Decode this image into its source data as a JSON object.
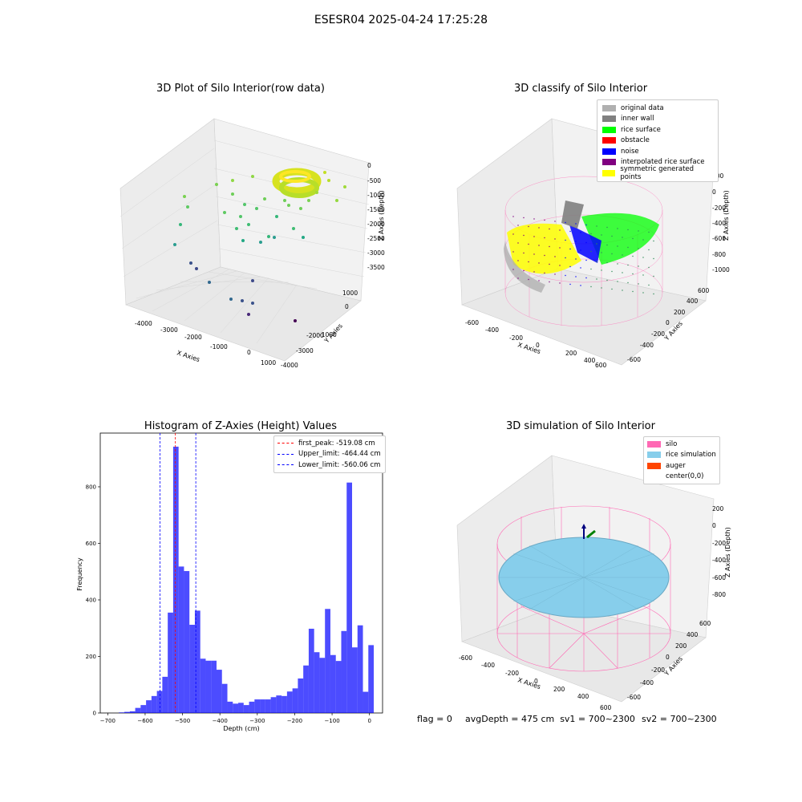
{
  "suptitle": "ESESR04 2025-04-24 17:25:28",
  "panels": {
    "raw": {
      "title": "3D Plot of Silo Interior(row data)",
      "xlabel": "X Axies",
      "ylabel": "Y Axies",
      "zlabel": "Z Axies (Depth)",
      "xticks": [
        "-4000",
        "-3000",
        "-2000",
        "-1000",
        "0",
        "1000"
      ],
      "yticks": [
        "1000",
        "0",
        "-1000",
        "-2000",
        "-3000",
        "-4000"
      ],
      "zticks": [
        "0",
        "-500",
        "-1000",
        "-1500",
        "-2000",
        "-2500",
        "-3000",
        "-3500"
      ]
    },
    "classify": {
      "title": "3D classify of Silo Interior",
      "xlabel": "X Axies",
      "ylabel": "Y Axies",
      "zlabel": "Z Axies (Depth)",
      "xticks": [
        "-600",
        "-400",
        "-200",
        "0",
        "200",
        "400",
        "600"
      ],
      "yticks": [
        "600",
        "400",
        "200",
        "0",
        "-200",
        "-400",
        "-600"
      ],
      "zticks": [
        "200",
        "0",
        "-200",
        "-400",
        "-600",
        "-800",
        "-1000"
      ],
      "legend": [
        {
          "label": "original data",
          "color": "#b0b0b0"
        },
        {
          "label": "inner wall",
          "color": "#808080"
        },
        {
          "label": "rice surface",
          "color": "#00ff00"
        },
        {
          "label": "obstacle",
          "color": "#ff0000"
        },
        {
          "label": "noise",
          "color": "#0000ff"
        },
        {
          "label": "interpolated rice surface",
          "color": "#800080"
        },
        {
          "label": "symmetric generated points",
          "color": "#ffff00"
        }
      ]
    },
    "simulation": {
      "title": "3D simulation of Silo Interior",
      "xlabel": "X Axies",
      "ylabel": "Y Axies",
      "zlabel": "Z Axies (Depth)",
      "xticks": [
        "-600",
        "-400",
        "-200",
        "0",
        "200",
        "400",
        "600"
      ],
      "yticks": [
        "600",
        "400",
        "200",
        "0",
        "-200",
        "-400",
        "-600"
      ],
      "zticks": [
        "200",
        "0",
        "-200",
        "-400",
        "-600",
        "-800"
      ],
      "legend": [
        {
          "label": "silo",
          "color": "#ff69b4"
        },
        {
          "label": "rice simulation",
          "color": "#87ceeb"
        },
        {
          "label": "auger",
          "color": "#ff4500"
        },
        {
          "label": "center(0,0)",
          "color": ""
        }
      ]
    }
  },
  "chart_data": {
    "type": "bar",
    "title": "Histogram of Z-Axies (Height) Values",
    "xlabel": "Depth (cm)",
    "ylabel": "Frequency",
    "xlim": [
      -720,
      35
    ],
    "ylim": [
      0,
      990
    ],
    "xticks": [
      -700,
      -600,
      -500,
      -400,
      -300,
      -200,
      -100,
      0
    ],
    "yticks": [
      0,
      200,
      400,
      600,
      800
    ],
    "bar_color": "#0000ff",
    "bin_width": 14.5,
    "bins": [
      {
        "x0": -670,
        "v": 2
      },
      {
        "x0": -655.5,
        "v": 4
      },
      {
        "x0": -641,
        "v": 6
      },
      {
        "x0": -626.5,
        "v": 18
      },
      {
        "x0": -612,
        "v": 28
      },
      {
        "x0": -597.5,
        "v": 45
      },
      {
        "x0": -583,
        "v": 60
      },
      {
        "x0": -568.5,
        "v": 78
      },
      {
        "x0": -554,
        "v": 128
      },
      {
        "x0": -539.5,
        "v": 355
      },
      {
        "x0": -525,
        "v": 942
      },
      {
        "x0": -510.5,
        "v": 518
      },
      {
        "x0": -496,
        "v": 502
      },
      {
        "x0": -481.5,
        "v": 312
      },
      {
        "x0": -467,
        "v": 362
      },
      {
        "x0": -452.5,
        "v": 192
      },
      {
        "x0": -438,
        "v": 185
      },
      {
        "x0": -423.5,
        "v": 185
      },
      {
        "x0": -409,
        "v": 153
      },
      {
        "x0": -394.5,
        "v": 103
      },
      {
        "x0": -380,
        "v": 40
      },
      {
        "x0": -365.5,
        "v": 33
      },
      {
        "x0": -351,
        "v": 36
      },
      {
        "x0": -336.5,
        "v": 28
      },
      {
        "x0": -322,
        "v": 40
      },
      {
        "x0": -307.5,
        "v": 48
      },
      {
        "x0": -293,
        "v": 48
      },
      {
        "x0": -278.5,
        "v": 48
      },
      {
        "x0": -264,
        "v": 56
      },
      {
        "x0": -249.5,
        "v": 62
      },
      {
        "x0": -235,
        "v": 60
      },
      {
        "x0": -220.5,
        "v": 76
      },
      {
        "x0": -206,
        "v": 87
      },
      {
        "x0": -191.5,
        "v": 122
      },
      {
        "x0": -177,
        "v": 168
      },
      {
        "x0": -162.5,
        "v": 298
      },
      {
        "x0": -148,
        "v": 215
      },
      {
        "x0": -133.5,
        "v": 195
      },
      {
        "x0": -119,
        "v": 368
      },
      {
        "x0": -104.5,
        "v": 205
      },
      {
        "x0": -90,
        "v": 184
      },
      {
        "x0": -75.5,
        "v": 290
      },
      {
        "x0": -61,
        "v": 815
      },
      {
        "x0": -46.5,
        "v": 232
      },
      {
        "x0": -32,
        "v": 310
      },
      {
        "x0": -17.5,
        "v": 75
      },
      {
        "x0": -3,
        "v": 240
      }
    ],
    "vlines": [
      {
        "label": "first_peak: -519.08 cm",
        "x": -519.08,
        "color": "#ff0000"
      },
      {
        "label": "Upper_limit: -464.44 cm",
        "x": -464.44,
        "color": "#0000ff"
      },
      {
        "label": "Lower_limit: -560.06 cm",
        "x": -560.06,
        "color": "#0000ff"
      }
    ]
  },
  "status": {
    "flag": "flag = 0",
    "avg": "avgDepth = 475 cm  sv1 = 700~2300",
    "sv2": "sv2 = 700~2300"
  }
}
